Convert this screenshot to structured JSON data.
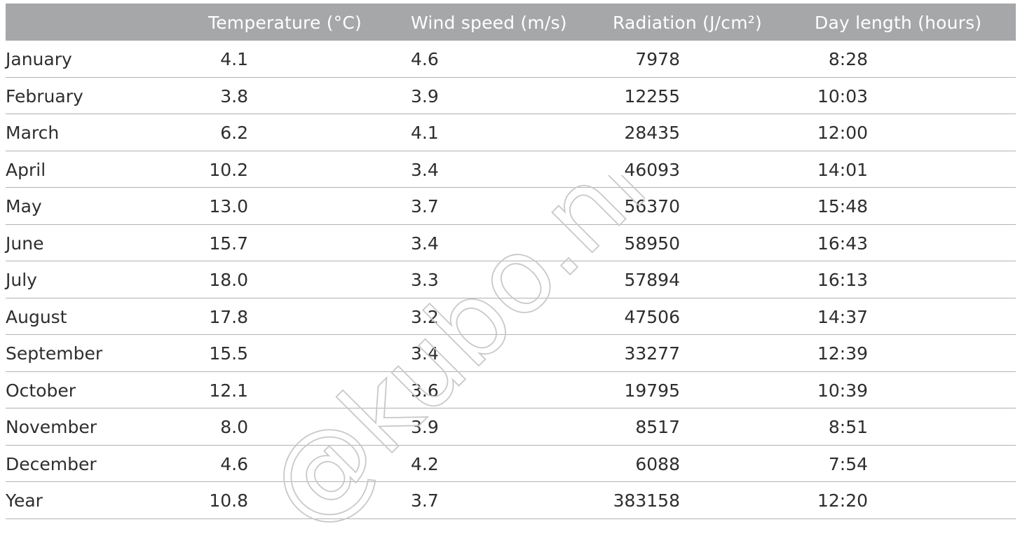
{
  "table": {
    "headers": [
      "",
      "Temperature (°C)",
      "Wind speed (m/s)",
      "Radiation (J/cm²)",
      "Day length (hours)"
    ],
    "rows": [
      {
        "month": "January",
        "temperature": "4.1",
        "wind": "4.6",
        "radiation": "7978",
        "day_length": "8:28"
      },
      {
        "month": "February",
        "temperature": "3.8",
        "wind": "3.9",
        "radiation": "12255",
        "day_length": "10:03"
      },
      {
        "month": "March",
        "temperature": "6.2",
        "wind": "4.1",
        "radiation": "28435",
        "day_length": "12:00"
      },
      {
        "month": "April",
        "temperature": "10.2",
        "wind": "3.4",
        "radiation": "46093",
        "day_length": "14:01"
      },
      {
        "month": "May",
        "temperature": "13.0",
        "wind": "3.7",
        "radiation": "56370",
        "day_length": "15:48"
      },
      {
        "month": "June",
        "temperature": "15.7",
        "wind": "3.4",
        "radiation": "58950",
        "day_length": "16:43"
      },
      {
        "month": "July",
        "temperature": "18.0",
        "wind": "3.3",
        "radiation": "57894",
        "day_length": "16:13"
      },
      {
        "month": "August",
        "temperature": "17.8",
        "wind": "3.2",
        "radiation": "47506",
        "day_length": "14:37"
      },
      {
        "month": "September",
        "temperature": "15.5",
        "wind": "3.4",
        "radiation": "33277",
        "day_length": "12:39"
      },
      {
        "month": "October",
        "temperature": "12.1",
        "wind": "3.6",
        "radiation": "19795",
        "day_length": "10:39"
      },
      {
        "month": "November",
        "temperature": "8.0",
        "wind": "3.9",
        "radiation": "8517",
        "day_length": "8:51"
      },
      {
        "month": "December",
        "temperature": "4.6",
        "wind": "4.2",
        "radiation": "6088",
        "day_length": "7:54"
      },
      {
        "month": "Year",
        "temperature": "10.8",
        "wind": "3.7",
        "radiation": "383158",
        "day_length": "12:20"
      }
    ]
  },
  "watermark": {
    "text": "@kubo.nl",
    "color": "#c8c8c8"
  }
}
